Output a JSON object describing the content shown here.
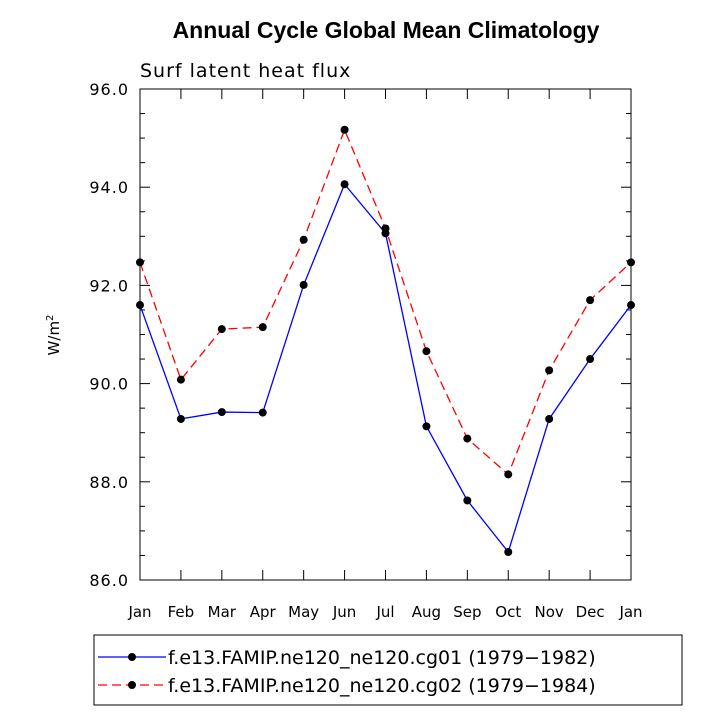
{
  "chart_data": {
    "type": "line",
    "title": "Annual Cycle Global Mean Climatology",
    "subtitle": "Surf latent heat flux",
    "xlabel": "",
    "ylabel": "W/m",
    "ylabel_superscript": "2",
    "ylim": [
      86.0,
      96.0
    ],
    "yticks": [
      "86.0",
      "88.0",
      "90.0",
      "92.0",
      "94.0",
      "96.0"
    ],
    "categories": [
      "Jan",
      "Feb",
      "Mar",
      "Apr",
      "May",
      "Jun",
      "Jul",
      "Aug",
      "Sep",
      "Oct",
      "Nov",
      "Dec",
      "Jan"
    ],
    "legend_position": "bottom",
    "series": [
      {
        "name": "f.e13.FAMIP.ne120_ne120.cg01 (1979-1982)",
        "label": "f.e13.FAMIP.ne120_ne120.cg01 (1979−1982)",
        "color": "#0000ff",
        "dash": "solid",
        "values": [
          91.6,
          89.28,
          89.42,
          89.41,
          92.01,
          94.06,
          93.06,
          89.13,
          87.62,
          86.57,
          89.28,
          90.5,
          91.6
        ]
      },
      {
        "name": "f.e13.FAMIP.ne120_ne120.cg02 (1979-1984)",
        "label": "f.e13.FAMIP.ne120_ne120.cg02 (1979−1984)",
        "color": "#ff0000",
        "dash": "dashed",
        "values": [
          92.47,
          90.08,
          91.11,
          91.15,
          92.93,
          95.17,
          93.16,
          90.66,
          88.88,
          88.15,
          90.27,
          91.7,
          92.47
        ]
      }
    ]
  }
}
